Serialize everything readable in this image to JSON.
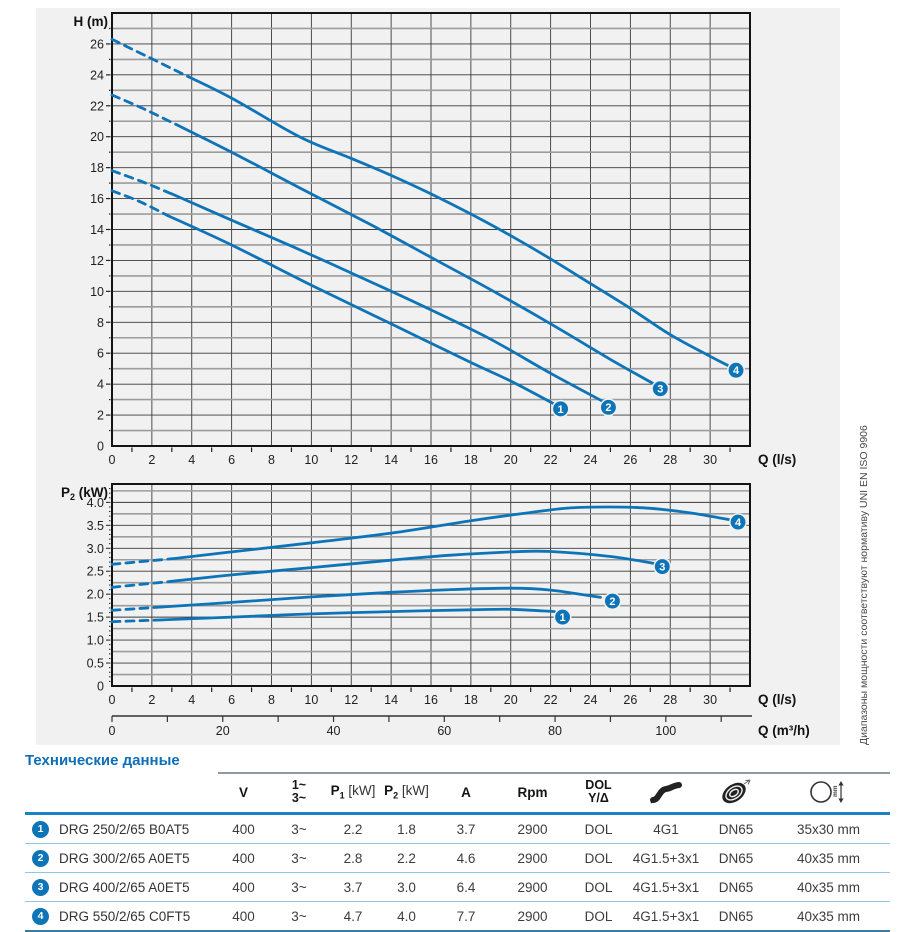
{
  "page": {
    "side_note": "Диапазоны мощности соответствуют нормативу UNI EN ISO 9906"
  },
  "colors": {
    "curve": "#0e74b8",
    "accent": "#0d6fb8",
    "header_rule": "#1b82c8",
    "row_separator": "#8ec8e8",
    "bottom_rule": "#3c7c9e",
    "grid_dark": "#3a3a3a",
    "grid_gray": "#9c9c9c",
    "frame": "#141414",
    "panel_bg": "#f1f1f2"
  },
  "chart_data": [
    {
      "type": "line",
      "title": "Head vs flow curves",
      "ylabel": "H (m)",
      "xlabel": "Q (l/s)",
      "xlim": [
        0,
        32
      ],
      "ylim": [
        0,
        28
      ],
      "grid": true,
      "legend_position": "on-curve-end-markers",
      "x_tick_labels": [
        0,
        2,
        4,
        6,
        8,
        10,
        12,
        14,
        16,
        18,
        20,
        22,
        24,
        26,
        28,
        30
      ],
      "y_tick_labels": [
        0,
        2,
        4,
        6,
        8,
        10,
        12,
        14,
        16,
        18,
        20,
        22,
        24,
        26
      ],
      "series": [
        {
          "name": "1",
          "dashed": [
            [
              0,
              16.5
            ],
            [
              1.4,
              15.8
            ],
            [
              2.8,
              14.9
            ]
          ],
          "solid": [
            [
              2.8,
              14.9
            ],
            [
              6,
              13.0
            ],
            [
              10,
              10.4
            ],
            [
              14,
              7.9
            ],
            [
              18,
              5.4
            ],
            [
              20,
              4.2
            ],
            [
              22.2,
              2.7
            ]
          ],
          "marker": [
            22.5,
            2.4
          ]
        },
        {
          "name": "2",
          "dashed": [
            [
              0,
              17.8
            ],
            [
              1.5,
              17.1
            ],
            [
              3,
              16.3
            ]
          ],
          "solid": [
            [
              3,
              16.3
            ],
            [
              6,
              14.6
            ],
            [
              9.4,
              12.7
            ],
            [
              13,
              10.6
            ],
            [
              16,
              8.8
            ],
            [
              19,
              6.9
            ],
            [
              22,
              4.7
            ],
            [
              24.6,
              2.9
            ]
          ],
          "marker": [
            24.9,
            2.5
          ]
        },
        {
          "name": "3",
          "dashed": [
            [
              0,
              22.7
            ],
            [
              1.6,
              21.8
            ],
            [
              3.2,
              20.8
            ]
          ],
          "solid": [
            [
              3.2,
              20.8
            ],
            [
              6,
              19.0
            ],
            [
              9.4,
              16.7
            ],
            [
              13,
              14.3
            ],
            [
              16,
              12.2
            ],
            [
              19,
              10.1
            ],
            [
              22,
              7.9
            ],
            [
              25,
              5.6
            ],
            [
              27.2,
              4.0
            ]
          ],
          "marker": [
            27.5,
            3.7
          ]
        },
        {
          "name": "4",
          "dashed": [
            [
              0,
              26.3
            ],
            [
              1.9,
              25.1
            ],
            [
              3.8,
              23.9
            ]
          ],
          "solid": [
            [
              3.8,
              23.9
            ],
            [
              6,
              22.5
            ],
            [
              9.4,
              20.0
            ],
            [
              12,
              18.6
            ],
            [
              14,
              17.5
            ],
            [
              16,
              16.3
            ],
            [
              18,
              15.0
            ],
            [
              20,
              13.6
            ],
            [
              22,
              12.1
            ],
            [
              24,
              10.5
            ],
            [
              26,
              8.9
            ],
            [
              28,
              7.2
            ],
            [
              30,
              5.8
            ],
            [
              30.9,
              5.2
            ]
          ],
          "marker": [
            31.3,
            4.9
          ]
        }
      ]
    },
    {
      "type": "line",
      "title": "Shaft power vs flow curves",
      "ylabel_parts": {
        "base": "P",
        "sub": "2",
        "rest": " (kW)"
      },
      "xlabel": "Q (l/s)",
      "xlabel2": "Q (m³/h)",
      "xlim": [
        0,
        32
      ],
      "ylim": [
        0,
        4.4
      ],
      "grid": true,
      "x_tick_labels": [
        0,
        2,
        4,
        6,
        8,
        10,
        12,
        14,
        16,
        18,
        20,
        22,
        24,
        26,
        28,
        30
      ],
      "y_tick_labels": [
        "0",
        "0.5",
        "1.0",
        "1.5",
        "2.0",
        "2.5",
        "3.0",
        "3.5",
        "4.0"
      ],
      "x2_tick_labels": [
        0,
        20,
        40,
        60,
        80,
        100
      ],
      "series": [
        {
          "name": "1",
          "dashed": [
            [
              0,
              1.4
            ],
            [
              2.5,
              1.44
            ]
          ],
          "solid": [
            [
              2.5,
              1.44
            ],
            [
              6,
              1.5
            ],
            [
              10,
              1.57
            ],
            [
              14,
              1.62
            ],
            [
              18,
              1.66
            ],
            [
              20,
              1.67
            ],
            [
              22.2,
              1.62
            ]
          ],
          "marker": [
            22.6,
            1.5
          ]
        },
        {
          "name": "2",
          "dashed": [
            [
              0,
              1.65
            ],
            [
              2.5,
              1.72
            ]
          ],
          "solid": [
            [
              2.5,
              1.72
            ],
            [
              6,
              1.82
            ],
            [
              10,
              1.94
            ],
            [
              14,
              2.04
            ],
            [
              17,
              2.1
            ],
            [
              20,
              2.13
            ],
            [
              22,
              2.09
            ],
            [
              24.5,
              1.93
            ]
          ],
          "marker": [
            25.1,
            1.85
          ]
        },
        {
          "name": "3",
          "dashed": [
            [
              0,
              2.15
            ],
            [
              3,
              2.28
            ]
          ],
          "solid": [
            [
              3,
              2.28
            ],
            [
              6,
              2.42
            ],
            [
              10,
              2.58
            ],
            [
              14,
              2.74
            ],
            [
              17,
              2.85
            ],
            [
              20,
              2.92
            ],
            [
              22,
              2.93
            ],
            [
              25,
              2.82
            ],
            [
              27.2,
              2.67
            ]
          ],
          "marker": [
            27.6,
            2.6
          ]
        },
        {
          "name": "4",
          "dashed": [
            [
              0,
              2.65
            ],
            [
              3.2,
              2.78
            ]
          ],
          "solid": [
            [
              3.2,
              2.78
            ],
            [
              6,
              2.92
            ],
            [
              10,
              3.12
            ],
            [
              14,
              3.33
            ],
            [
              18,
              3.6
            ],
            [
              21,
              3.78
            ],
            [
              23,
              3.88
            ],
            [
              25,
              3.9
            ],
            [
              27,
              3.87
            ],
            [
              29,
              3.77
            ],
            [
              31,
              3.62
            ]
          ],
          "marker": [
            31.4,
            3.57
          ]
        }
      ]
    }
  ],
  "table": {
    "title": "Технические данные",
    "headers": [
      {
        "type": "text",
        "label": "V"
      },
      {
        "type": "stack",
        "lines": [
          "1~",
          "3~"
        ]
      },
      {
        "type": "sub",
        "base": "P",
        "sub": "1",
        "unit": "[kW]"
      },
      {
        "type": "sub",
        "base": "P",
        "sub": "2",
        "unit": "[kW]"
      },
      {
        "type": "text",
        "label": "A"
      },
      {
        "type": "text",
        "label": "Rpm"
      },
      {
        "type": "stack",
        "lines": [
          "DOL",
          "Y/Δ"
        ]
      },
      {
        "type": "icon",
        "icon": "cable-icon"
      },
      {
        "type": "icon",
        "icon": "impeller-icon"
      },
      {
        "type": "icon",
        "icon": "free-passage-icon"
      }
    ],
    "rows": [
      {
        "num": "1",
        "model": "DRG 250/2/65 B0AT5",
        "values": [
          "400",
          "3~",
          "2.2",
          "1.8",
          "3.7",
          "2900",
          "DOL",
          "4G1",
          "DN65",
          "35x30 mm"
        ]
      },
      {
        "num": "2",
        "model": "DRG 300/2/65 A0ET5",
        "values": [
          "400",
          "3~",
          "2.8",
          "2.2",
          "4.6",
          "2900",
          "DOL",
          "4G1.5+3x1",
          "DN65",
          "40x35 mm"
        ]
      },
      {
        "num": "3",
        "model": "DRG 400/2/65 A0ET5",
        "values": [
          "400",
          "3~",
          "3.7",
          "3.0",
          "6.4",
          "2900",
          "DOL",
          "4G1.5+3x1",
          "DN65",
          "40x35 mm"
        ]
      },
      {
        "num": "4",
        "model": "DRG 550/2/65 C0FT5",
        "values": [
          "400",
          "3~",
          "4.7",
          "4.0",
          "7.7",
          "2900",
          "DOL",
          "4G1.5+3x1",
          "DN65",
          "40x35 mm"
        ]
      }
    ]
  }
}
